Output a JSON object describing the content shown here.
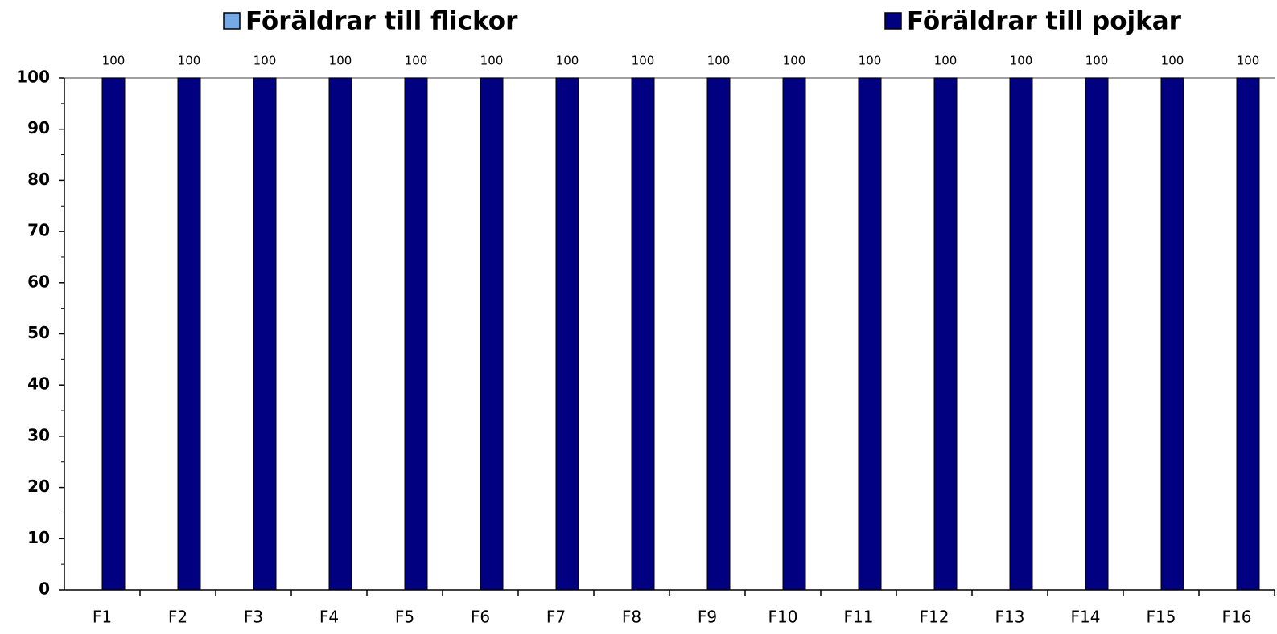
{
  "chart_data": {
    "type": "bar",
    "categories": [
      "F1",
      "F2",
      "F3",
      "F4",
      "F5",
      "F6",
      "F7",
      "F8",
      "F9",
      "F10",
      "F11",
      "F12",
      "F13",
      "F14",
      "F15",
      "F16"
    ],
    "series": [
      {
        "name": "Föräldrar till flickor",
        "color": "#74a9e6",
        "values": [
          null,
          null,
          null,
          null,
          null,
          null,
          null,
          null,
          null,
          null,
          null,
          null,
          null,
          null,
          null,
          null
        ]
      },
      {
        "name": "Föräldrar till pojkar",
        "color": "#000080",
        "values": [
          100,
          100,
          100,
          100,
          100,
          100,
          100,
          100,
          100,
          100,
          100,
          100,
          100,
          100,
          100,
          100
        ]
      }
    ],
    "ylim": [
      0,
      100
    ],
    "yticks": [
      0,
      10,
      20,
      30,
      40,
      50,
      60,
      70,
      80,
      90,
      100
    ],
    "grid": false,
    "legend": "top",
    "data_labels": true
  }
}
